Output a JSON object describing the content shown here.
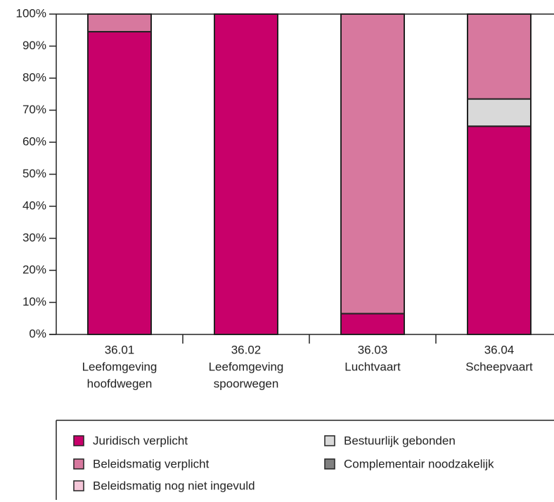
{
  "chart_data": {
    "type": "stacked_bar",
    "categories": [
      [
        "36.01",
        "Leefomgeving",
        "hoofdwegen"
      ],
      [
        "36.02",
        "Leefomgeving",
        "spoorwegen"
      ],
      [
        "36.03",
        "Luchtvaart"
      ],
      [
        "36.04",
        "Scheepvaart"
      ]
    ],
    "series": [
      {
        "name": "Juridisch verplicht",
        "color": "#c8006a",
        "values": [
          94.5,
          100,
          6.5,
          65
        ]
      },
      {
        "name": "Bestuurlijk gebonden",
        "color": "#d9d9d9",
        "values": [
          0,
          0,
          0,
          8.5
        ]
      },
      {
        "name": "Complementair noodzakelijk",
        "color": "#808080",
        "values": [
          0,
          0,
          0,
          0
        ]
      },
      {
        "name": "Beleidsmatig verplicht",
        "color": "#d7789e",
        "values": [
          5.5,
          0,
          93.5,
          26.5
        ]
      },
      {
        "name": "Beleidsmatig nog niet ingevuld",
        "color": "#f4c6d8",
        "values": [
          0,
          0,
          0,
          0
        ]
      }
    ],
    "ylim": [
      0,
      100
    ],
    "yticks": [
      {
        "value": 0,
        "label": "0%"
      },
      {
        "value": 10,
        "label": "10%"
      },
      {
        "value": 20,
        "label": "20%"
      },
      {
        "value": 30,
        "label": "30%"
      },
      {
        "value": 40,
        "label": "40%"
      },
      {
        "value": 50,
        "label": "50%"
      },
      {
        "value": 60,
        "label": "60%"
      },
      {
        "value": 70,
        "label": "70%"
      },
      {
        "value": 80,
        "label": "80%"
      },
      {
        "value": 90,
        "label": "90%"
      },
      {
        "value": 100,
        "label": "100%"
      }
    ]
  }
}
